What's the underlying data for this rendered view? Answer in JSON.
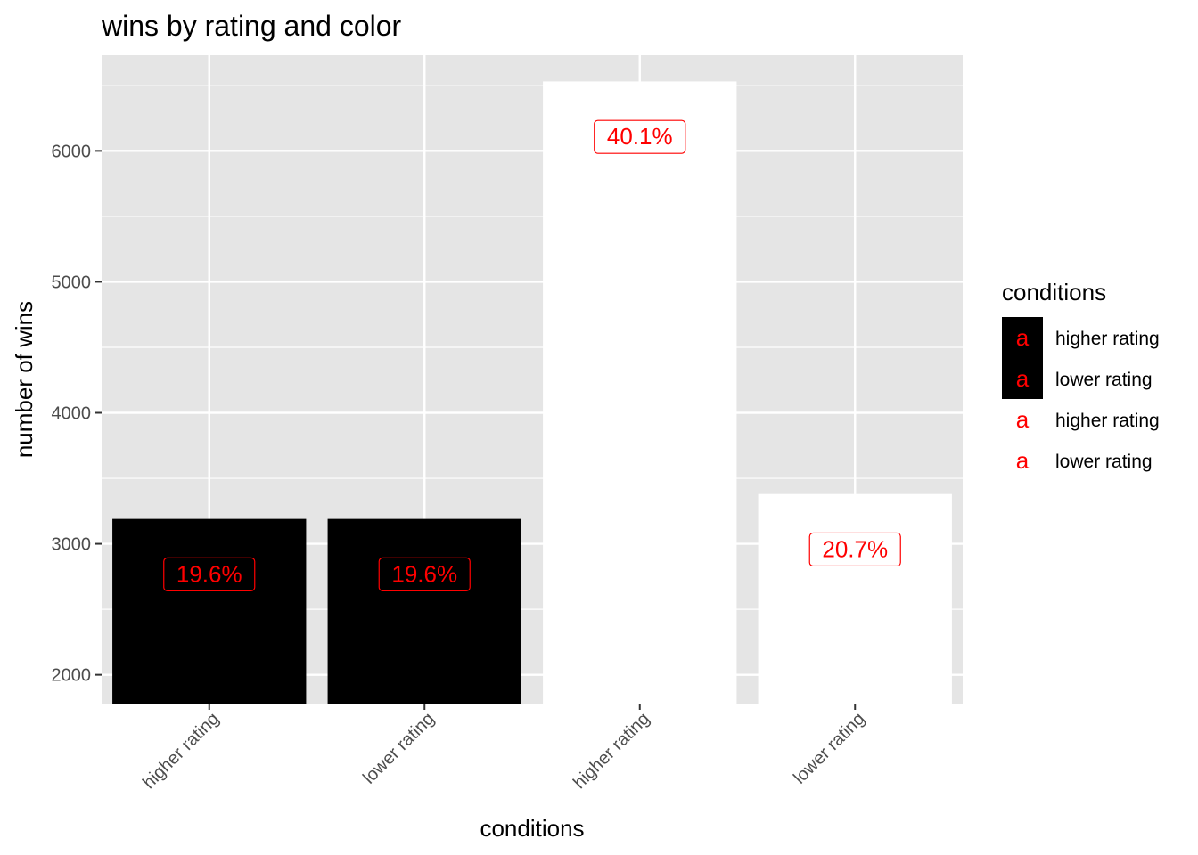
{
  "chart_data": {
    "type": "bar",
    "title": "wins by rating and color",
    "xlabel": "conditions",
    "ylabel": "number of wins",
    "categories": [
      "higher rating",
      "lower rating",
      "higher rating",
      "lower rating"
    ],
    "values": [
      3190,
      3190,
      6530,
      3380
    ],
    "fills": [
      "#000000",
      "#000000",
      "#ffffff",
      "#ffffff"
    ],
    "labels": [
      "19.6%",
      "19.6%",
      "40.1%",
      "20.7%"
    ],
    "label_color": "#ff0000",
    "ylim": [
      1780,
      6730
    ],
    "yticks": [
      2000,
      3000,
      4000,
      5000,
      6000
    ],
    "ytick_labels": [
      "2000",
      "3000",
      "4000",
      "5000",
      "6000"
    ],
    "grid": true,
    "panel_color": "#e5e5e5",
    "legend": {
      "title": "conditions",
      "position": "right",
      "key_glyph": "a",
      "items": [
        {
          "label": "higher rating",
          "fill": "#000000"
        },
        {
          "label": "lower rating",
          "fill": "#000000"
        },
        {
          "label": "higher rating",
          "fill": "#ffffff"
        },
        {
          "label": "lower rating",
          "fill": "#ffffff"
        }
      ]
    }
  }
}
